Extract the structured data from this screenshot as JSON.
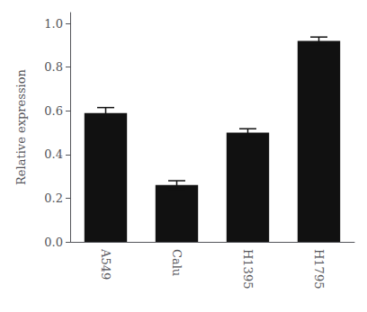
{
  "chart_data": {
    "type": "bar",
    "categories": [
      "A549",
      "Calu",
      "H1395",
      "H1795"
    ],
    "values": [
      0.59,
      0.26,
      0.5,
      0.92
    ],
    "errors": [
      0.025,
      0.02,
      0.018,
      0.018
    ],
    "color": "#111111",
    "ylabel": "Relative expression",
    "ylim": [
      0.0,
      1.05
    ],
    "yticks": [
      {
        "value": 0,
        "label": "0.0"
      },
      0.2,
      0.4,
      0.6,
      0.8,
      {
        "value": 1,
        "label": "1.0"
      }
    ],
    "grid": false
  }
}
